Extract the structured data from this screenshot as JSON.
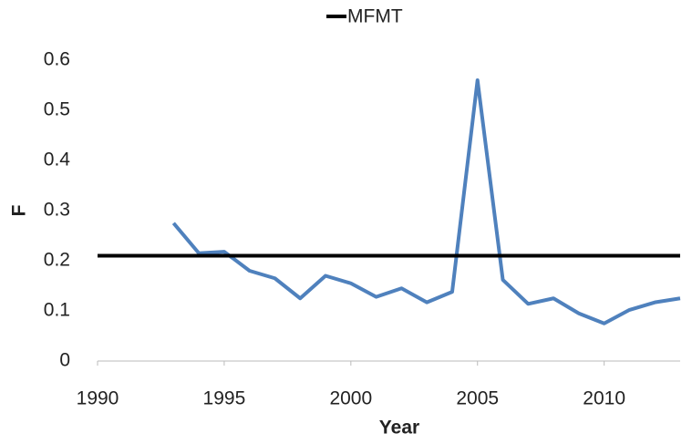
{
  "chart_data": {
    "type": "line",
    "x_label": "Year",
    "y_label": "F",
    "xlim": [
      1990,
      2013
    ],
    "xticks": [
      1990,
      1995,
      2000,
      2005,
      2010
    ],
    "ylim": [
      0,
      0.6
    ],
    "yticks": [
      0,
      0.1,
      0.2,
      0.3,
      0.4,
      0.5,
      0.6
    ],
    "legend": "top",
    "series": [
      {
        "color": "#4f81bd",
        "x": [
          1993,
          1994,
          1995,
          1996,
          1997,
          1998,
          1999,
          2000,
          2001,
          2002,
          2003,
          2004,
          2005,
          2006,
          2007,
          2008,
          2009,
          2010,
          2011,
          2012,
          2013
        ],
        "values": [
          0.275,
          0.215,
          0.218,
          0.18,
          0.165,
          0.125,
          0.17,
          0.155,
          0.128,
          0.145,
          0.117,
          0.138,
          0.56,
          0.162,
          0.114,
          0.125,
          0.095,
          0.075,
          0.102,
          0.117,
          0.125
        ]
      },
      {
        "name": "MFMT",
        "color": "#000000",
        "x": [
          1990,
          2013
        ],
        "values": [
          0.21,
          0.21
        ]
      }
    ]
  }
}
